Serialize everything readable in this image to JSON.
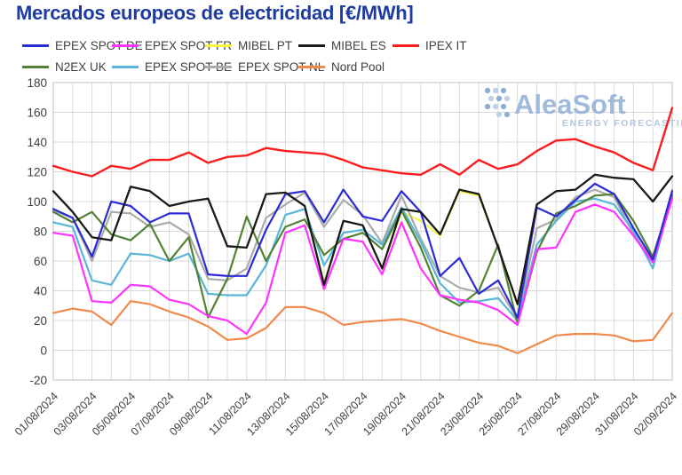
{
  "title": "Mercados europeos de electricidad [€/MWh]",
  "watermark": {
    "name": "AleaSoft",
    "subtitle": "ENERGY FORECASTING",
    "text_color": "#96b3d9",
    "subtitle_color": "#a9c0de",
    "dot_color_dark": "#7fa5d4",
    "dot_color_light": "#b9cbe5"
  },
  "axis": {
    "y_ticks": [
      180,
      160,
      140,
      120,
      100,
      80,
      60,
      40,
      20,
      0,
      -20
    ],
    "x_label_every": 2,
    "tick_color": "#404040",
    "grid_color": "#d9d9d9",
    "border_color": "#bfbfbf"
  },
  "chart_data": {
    "type": "line",
    "title": "Mercados europeos de electricidad [€/MWh]",
    "xlabel": "",
    "ylabel": "",
    "ylim": [
      -20,
      180
    ],
    "y_step": 20,
    "grid": true,
    "legend_position": "top",
    "categories": [
      "01/08/2024",
      "02/08/2024",
      "03/08/2024",
      "04/08/2024",
      "05/08/2024",
      "06/08/2024",
      "07/08/2024",
      "08/08/2024",
      "09/08/2024",
      "10/08/2024",
      "11/08/2024",
      "12/08/2024",
      "13/08/2024",
      "14/08/2024",
      "15/08/2024",
      "16/08/2024",
      "17/08/2024",
      "18/08/2024",
      "19/08/2024",
      "20/08/2024",
      "21/08/2024",
      "22/08/2024",
      "23/08/2024",
      "24/08/2024",
      "25/08/2024",
      "26/08/2024",
      "27/08/2024",
      "28/08/2024",
      "29/08/2024",
      "30/08/2024",
      "31/08/2024",
      "01/09/2024",
      "02/09/2024"
    ],
    "series": [
      {
        "name": "MIBEL PT",
        "color": "#f7f73e",
        "width": 2,
        "legend_row": 0,
        "legend_col": 2,
        "values": [
          107,
          93,
          76,
          74,
          110,
          107,
          97,
          100,
          102,
          70,
          69,
          105,
          106,
          97,
          45,
          87,
          84,
          55,
          93,
          87,
          77,
          107,
          104,
          69,
          30,
          98,
          107,
          108,
          118,
          116,
          115,
          100,
          117
        ]
      },
      {
        "name": "EPEX SPOT NL",
        "color": "#ababab",
        "width": 2.2,
        "legend_row": 1,
        "legend_col": 2,
        "values": [
          94,
          89,
          60,
          93,
          92,
          83,
          86,
          78,
          48,
          47,
          55,
          89,
          98,
          106,
          83,
          101,
          91,
          72,
          104,
          75,
          50,
          42,
          39,
          42,
          21,
          82,
          88,
          103,
          108,
          103,
          78,
          60,
          108
        ]
      },
      {
        "name": "EPEX SPOT BE",
        "color": "#58b6d8",
        "width": 2.2,
        "legend_row": 1,
        "legend_col": 1,
        "values": [
          86,
          83,
          47,
          44,
          65,
          64,
          60,
          65,
          38,
          37,
          37,
          57,
          91,
          95,
          57,
          79,
          81,
          71,
          96,
          73,
          45,
          32,
          33,
          35,
          20,
          71,
          87,
          100,
          102,
          98,
          80,
          55,
          105
        ]
      },
      {
        "name": "N2EX UK",
        "color": "#538135",
        "width": 2.2,
        "legend_row": 1,
        "legend_col": 0,
        "values": [
          93,
          86,
          93,
          78,
          74,
          85,
          60,
          76,
          22,
          48,
          90,
          60,
          83,
          88,
          64,
          75,
          79,
          68,
          94,
          69,
          37,
          30,
          40,
          71,
          18,
          66,
          92,
          97,
          104,
          105,
          87,
          63,
          104
        ]
      },
      {
        "name": "EPEX SPOT FR",
        "color": "#ff33ff",
        "width": 2.2,
        "legend_row": 0,
        "legend_col": 1,
        "values": [
          79,
          77,
          33,
          32,
          44,
          43,
          34,
          31,
          23,
          20,
          11,
          32,
          79,
          84,
          41,
          75,
          73,
          51,
          86,
          55,
          37,
          34,
          32,
          27,
          17,
          68,
          69,
          93,
          98,
          93,
          77,
          59,
          102
        ]
      },
      {
        "name": "EPEX SPOT DE",
        "color": "#2b2bd5",
        "width": 2.2,
        "legend_row": 0,
        "legend_col": 0,
        "values": [
          95,
          89,
          63,
          100,
          97,
          86,
          92,
          92,
          51,
          50,
          50,
          81,
          105,
          107,
          86,
          108,
          90,
          87,
          107,
          93,
          50,
          62,
          38,
          47,
          22,
          96,
          90,
          101,
          112,
          105,
          82,
          61,
          107
        ]
      },
      {
        "name": "MIBEL ES",
        "color": "#1a1a1a",
        "width": 2.3,
        "legend_row": 0,
        "legend_col": 3,
        "values": [
          107,
          93,
          76,
          74,
          110,
          107,
          97,
          100,
          102,
          70,
          69,
          105,
          106,
          97,
          44,
          87,
          84,
          55,
          95,
          93,
          78,
          108,
          105,
          69,
          31,
          98,
          107,
          108,
          118,
          116,
          115,
          100,
          117
        ]
      },
      {
        "name": "IPEX IT",
        "color": "#fb1d1d",
        "width": 2.4,
        "legend_row": 0,
        "legend_col": 4,
        "values": [
          124,
          120,
          117,
          124,
          122,
          128,
          128,
          133,
          126,
          130,
          131,
          136,
          134,
          133,
          132,
          128,
          123,
          121,
          119,
          118,
          125,
          118,
          128,
          122,
          125,
          134,
          141,
          142,
          137,
          133,
          126,
          121,
          163
        ]
      },
      {
        "name": "Nord Pool",
        "color": "#f08a4c",
        "width": 2.2,
        "legend_row": 1,
        "legend_col": 3,
        "values": [
          25,
          28,
          26,
          17,
          33,
          31,
          26,
          22,
          16,
          7,
          8,
          15,
          29,
          29,
          25,
          17,
          19,
          20,
          21,
          18,
          13,
          9,
          5,
          3,
          -2,
          4,
          10,
          11,
          11,
          10,
          6,
          7,
          25
        ]
      }
    ]
  }
}
